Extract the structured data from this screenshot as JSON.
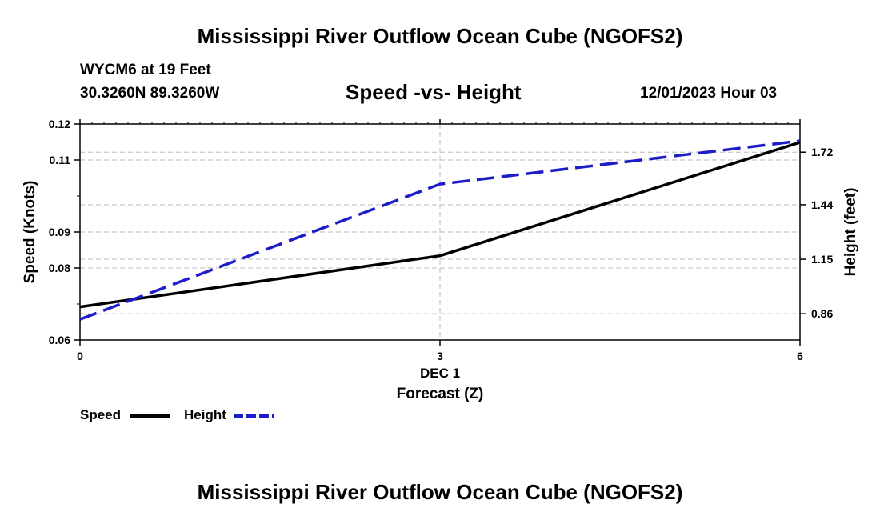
{
  "page": {
    "title": "Mississippi River Outflow Ocean Cube (NGOFS2)",
    "station": "WYCM6 at 19 Feet",
    "coords": "30.3260N  89.3260W",
    "subtitle": "Speed -vs- Height",
    "datetime": "12/01/2023 Hour 03",
    "footer_title": "Mississippi River Outflow Ocean Cube (NGOFS2)"
  },
  "chart_data": {
    "type": "line",
    "title": "Speed -vs- Height",
    "xlabel": "Forecast (Z)",
    "x_date_label": "DEC 1",
    "x": [
      0,
      3,
      6
    ],
    "xlim": [
      0,
      6
    ],
    "x_ticks": [
      0,
      3,
      6
    ],
    "ylabel_left": "Speed (Knots)",
    "ylim_left": [
      0.06,
      0.12
    ],
    "y_ticks_left": [
      0.06,
      0.08,
      0.09,
      0.11,
      0.12
    ],
    "ylabel_right": "Height (feet)",
    "ylim_right": [
      0.72,
      1.87
    ],
    "y_ticks_right": [
      0.86,
      1.15,
      1.44,
      1.72
    ],
    "grid": true,
    "series": [
      {
        "name": "Speed",
        "axis": "left",
        "color": "#000000",
        "dash": "solid",
        "values": [
          0.0692,
          0.0834,
          0.1149
        ]
      },
      {
        "name": "Height",
        "axis": "right",
        "color": "#1c1cc8",
        "dash": "dashed",
        "values": [
          0.83,
          1.55,
          1.78
        ]
      }
    ],
    "legend": [
      {
        "label": "Speed"
      },
      {
        "label": "Height"
      }
    ]
  }
}
